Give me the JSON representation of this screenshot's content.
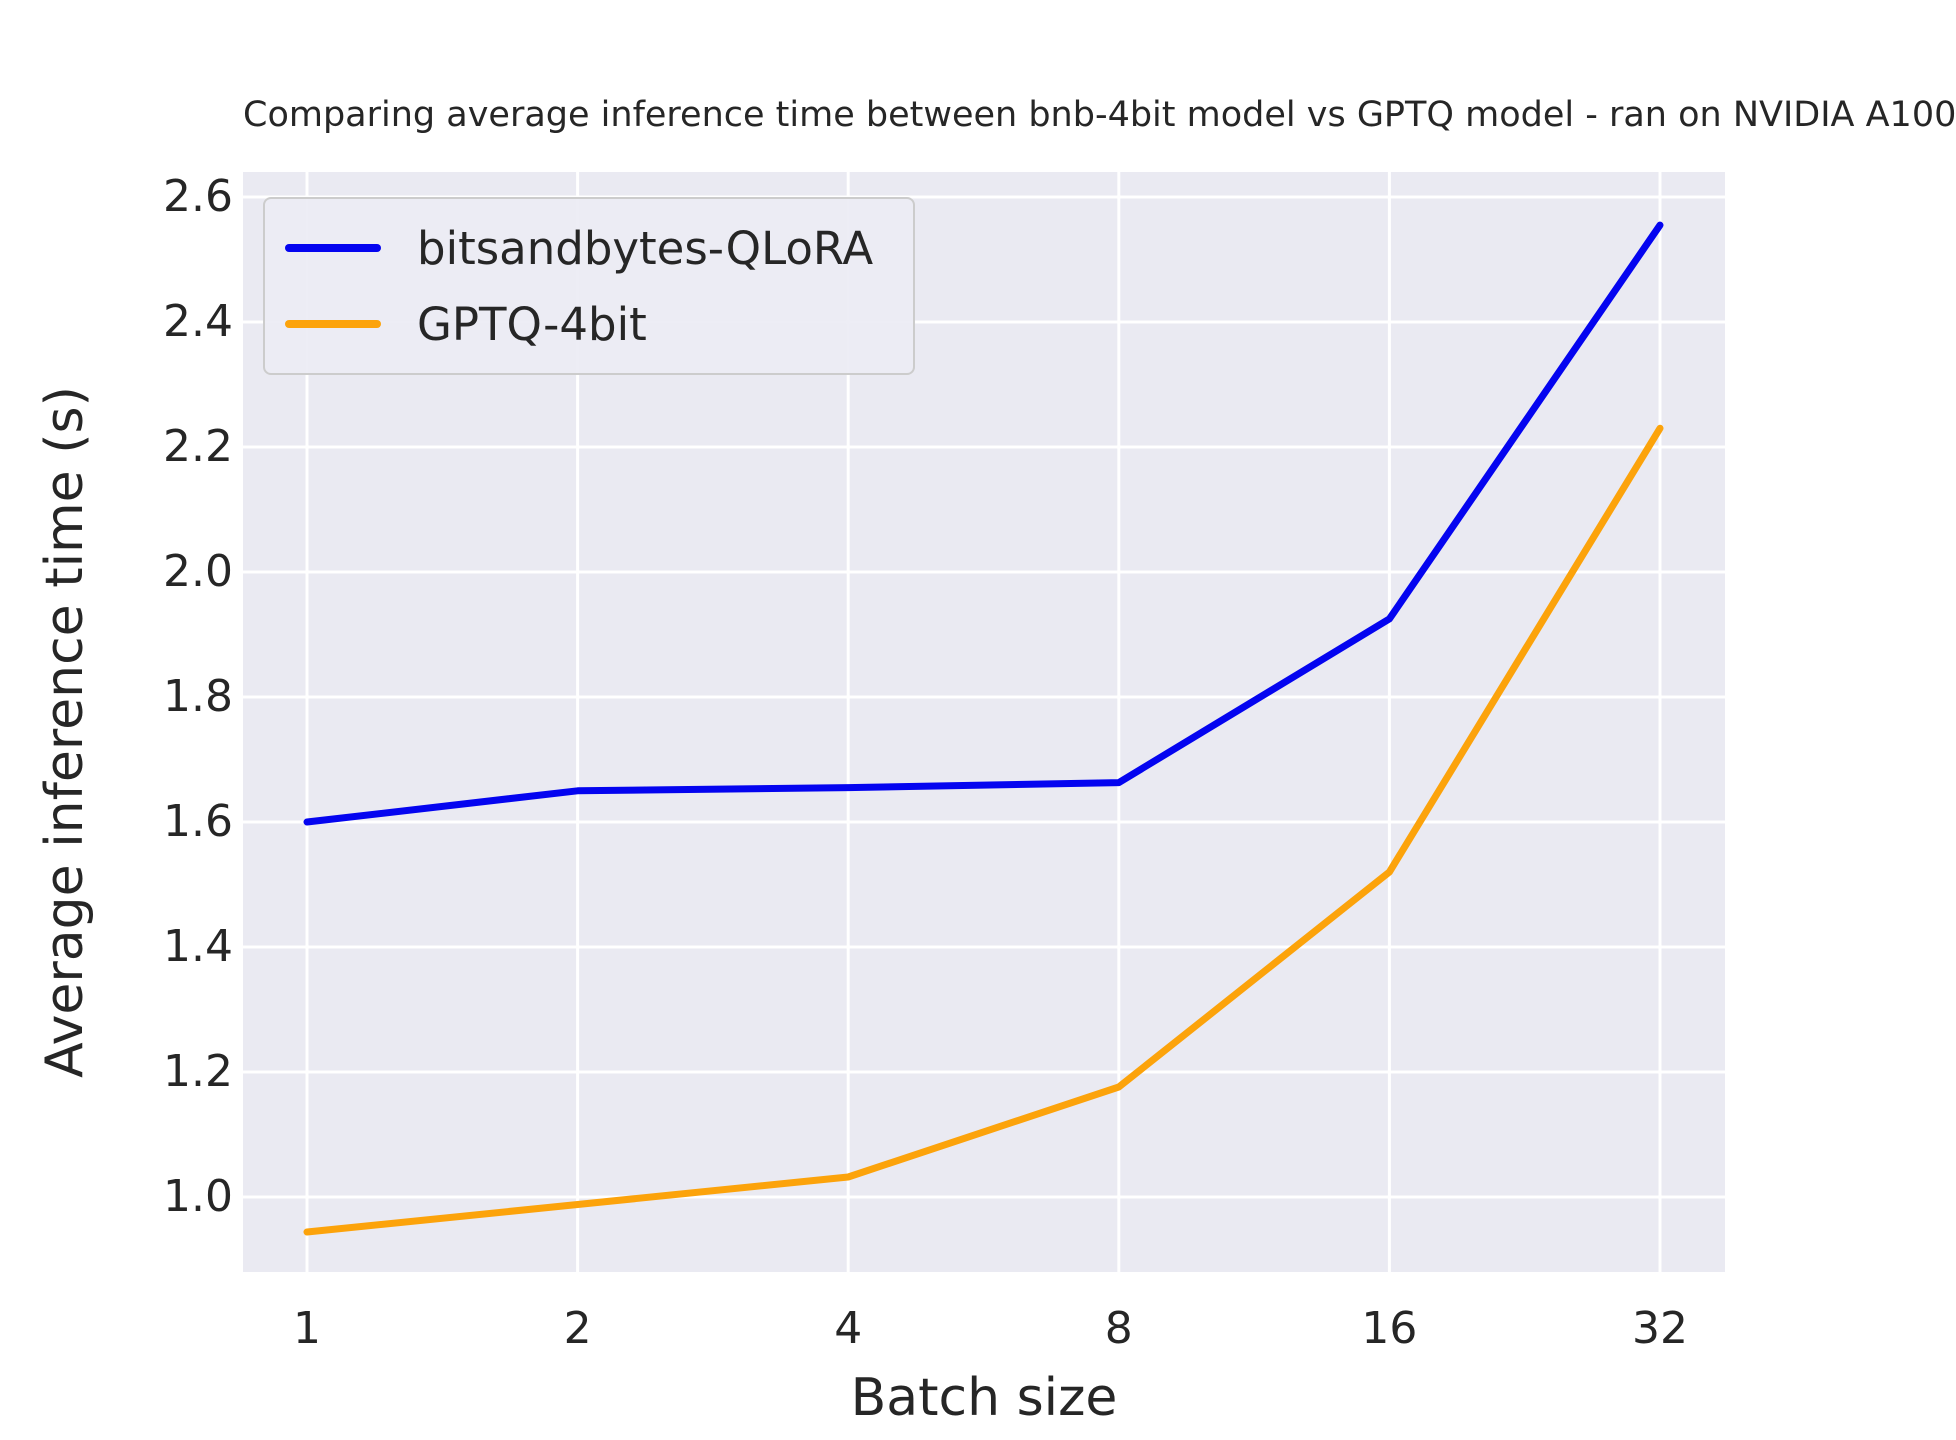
{
  "chart_data": {
    "type": "line",
    "title": "Comparing average inference time between bnb-4bit model vs GPTQ model - ran on NVIDIA A100",
    "xlabel": "Batch size",
    "ylabel": "Average inference time (s)",
    "x_scale": "log2",
    "categories": [
      1,
      2,
      4,
      8,
      16,
      32
    ],
    "y_ticks": [
      "1.0",
      "1.2",
      "1.4",
      "1.6",
      "1.8",
      "2.0",
      "2.2",
      "2.4",
      "2.6"
    ],
    "ylim": [
      0.88,
      2.64
    ],
    "grid": true,
    "legend_position": "upper left",
    "series": [
      {
        "name": "bitsandbytes-QLoRA",
        "color": "#0404f0",
        "values": [
          1.6,
          1.65,
          1.655,
          1.663,
          1.925,
          2.555
        ]
      },
      {
        "name": "GPTQ-4bit",
        "color": "#fca30b",
        "values": [
          0.944,
          0.988,
          1.032,
          1.176,
          1.52,
          2.23
        ]
      }
    ],
    "colors": {
      "plot_bg": "#eaeaf2",
      "grid": "#ffffff",
      "text": "#262626",
      "legend_bg": "#ececf4",
      "legend_border": "#cccccc"
    }
  }
}
